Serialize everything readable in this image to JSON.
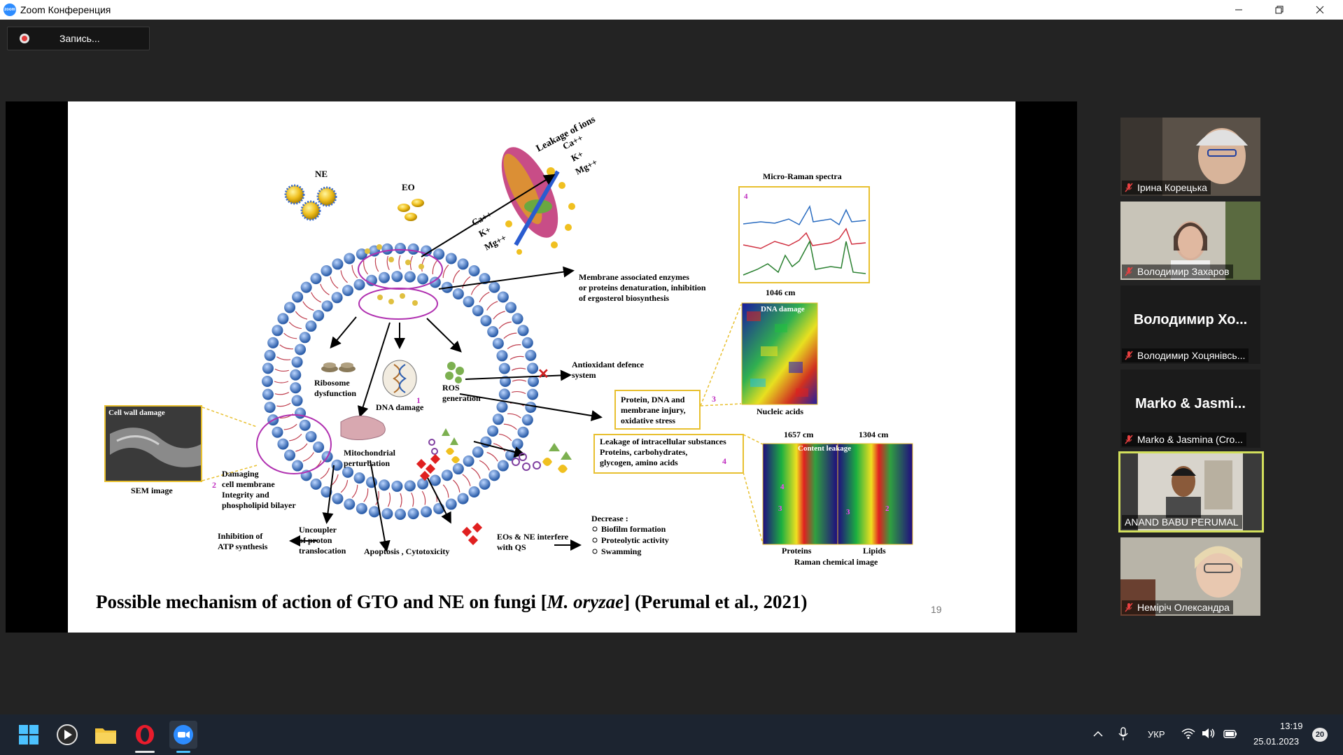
{
  "window": {
    "title": "Zoom Конференция",
    "logo_text": "zoom"
  },
  "recording": {
    "label": "Запись..."
  },
  "slide": {
    "caption_pre": "Possible mechanism of action of GTO and NE on fungi [",
    "caption_italic": "M. oryzae",
    "caption_post": "] (Perumal et al., 2021)",
    "page_number": "19",
    "labels": {
      "ne": "NE",
      "eo": "EO",
      "leakage_ions": "Leakage of ions",
      "ions_out_1": "Ca++",
      "ions_out_2": "K+",
      "ions_out_3": "Mg++",
      "ions_in_1": "Ca++",
      "ions_in_2": "K+",
      "ions_in_3": "Mg++",
      "membrane_enzymes_1": "Membrane associated enzymes",
      "membrane_enzymes_2": "or proteins denaturation, inhibition",
      "membrane_enzymes_3": "of ergosterol biosynthesis",
      "micro_raman": "Micro-Raman spectra",
      "raman_num": "4",
      "cm1046": "1046 cm",
      "dna_damage_img": "DNA damage",
      "nucleic_acids": "Nucleic acids",
      "antioxidant_1": "Antioxidant defence",
      "antioxidant_2": "system",
      "ribosome_1": "Ribosome",
      "ribosome_2": "dysfunction",
      "dna_damage": "DNA damage",
      "num_1": "1",
      "ros_1": "ROS",
      "ros_2": "generation",
      "protein_box_1": "Protein, DNA and",
      "protein_box_2": "membrane injury,",
      "protein_box_3": "oxidative stress",
      "num_3": "3",
      "cell_wall_damage": "Cell wall damage",
      "sem_image": "SEM image",
      "num_2": "2",
      "damaging_1": "Damaging",
      "damaging_2": "cell membrane",
      "damaging_3": "Integrity and",
      "damaging_4": "phospholipid bilayer",
      "mito_1": "Mitochondrial",
      "mito_2": "perturbation",
      "leakage_box_1": "Leakage of intracellular substances",
      "leakage_box_2": "Proteins, carbohydrates,",
      "leakage_box_3": "glycogen, amino acids",
      "num_4": "4",
      "cm1657": "1657 cm",
      "cm1304": "1304 cm",
      "content_leakage": "Content leakage",
      "proteins": "Proteins",
      "lipids": "Lipids",
      "raman_chem": "Raman chemical image",
      "inhibition_1": "Inhibition of",
      "inhibition_2": "ATP synthesis",
      "uncoupler_1": "Uncoupler",
      "uncoupler_2": "of proton",
      "uncoupler_3": "translocation",
      "apoptosis": "Apoptosis , Cytotoxicity",
      "qs_1": "EOs & NE interfere",
      "qs_2": "with QS",
      "decrease": "Decrease :",
      "decrease_1": "Biofilm formation",
      "decrease_2": "Proteolytic activity",
      "decrease_3": "Swamming",
      "img_num_4": "4",
      "img_num_3": "3",
      "img_num_3b": "3",
      "img_num_2": "2"
    }
  },
  "participants": [
    {
      "name": "Ірина Корецька",
      "type": "video",
      "muted": true
    },
    {
      "name": "Володимир Захаров",
      "type": "video",
      "muted": true
    },
    {
      "name": "Володимир Хоцянівсь...",
      "display_name": "Володимир Хо...",
      "type": "name",
      "muted": true
    },
    {
      "name": "Marko & Jasmina (Cro...",
      "display_name": "Marko & Jasmi...",
      "type": "name",
      "muted": true
    },
    {
      "name": "ANAND BABU PERUMAL",
      "type": "video",
      "muted": false,
      "active": true
    },
    {
      "name": "Неміріч Олександра",
      "type": "video",
      "muted": true
    }
  ],
  "taskbar": {
    "language": "УКР",
    "time": "13:19",
    "date": "25.01.2023",
    "notifications": "20",
    "apps": [
      "windows-start-icon",
      "media-player-icon",
      "file-explorer-icon",
      "opera-icon",
      "zoom-icon"
    ]
  }
}
